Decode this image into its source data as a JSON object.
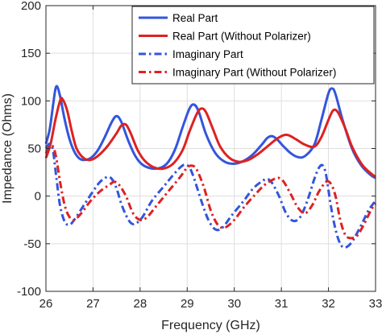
{
  "chart_data": {
    "type": "line",
    "title": "",
    "xlabel": "Frequency (GHz)",
    "ylabel": "Impedance (Ohms)",
    "xlim": [
      26,
      33
    ],
    "ylim": [
      -100,
      200
    ],
    "xticks": [
      26,
      27,
      28,
      29,
      30,
      31,
      32,
      33
    ],
    "yticks": [
      -100,
      -50,
      0,
      50,
      100,
      150,
      200
    ],
    "grid": true,
    "legend_position": "top-right",
    "series": [
      {
        "name": "Real Part",
        "color": "#3355dd",
        "style": "solid",
        "points": [
          [
            26.0,
            55
          ],
          [
            26.08,
            70
          ],
          [
            26.15,
            95
          ],
          [
            26.2,
            112
          ],
          [
            26.24,
            115
          ],
          [
            26.3,
            105
          ],
          [
            26.4,
            80
          ],
          [
            26.5,
            60
          ],
          [
            26.6,
            47
          ],
          [
            26.7,
            40
          ],
          [
            26.8,
            38
          ],
          [
            26.95,
            40
          ],
          [
            27.1,
            48
          ],
          [
            27.25,
            62
          ],
          [
            27.4,
            78
          ],
          [
            27.5,
            84
          ],
          [
            27.6,
            78
          ],
          [
            27.75,
            58
          ],
          [
            27.9,
            42
          ],
          [
            28.05,
            33
          ],
          [
            28.25,
            29
          ],
          [
            28.45,
            30
          ],
          [
            28.6,
            36
          ],
          [
            28.75,
            50
          ],
          [
            28.9,
            72
          ],
          [
            29.05,
            92
          ],
          [
            29.15,
            96
          ],
          [
            29.25,
            88
          ],
          [
            29.4,
            65
          ],
          [
            29.6,
            45
          ],
          [
            29.8,
            36
          ],
          [
            30.0,
            34
          ],
          [
            30.2,
            37
          ],
          [
            30.4,
            44
          ],
          [
            30.6,
            55
          ],
          [
            30.7,
            61
          ],
          [
            30.8,
            63
          ],
          [
            30.9,
            60
          ],
          [
            31.05,
            52
          ],
          [
            31.2,
            45
          ],
          [
            31.35,
            41
          ],
          [
            31.5,
            42
          ],
          [
            31.7,
            54
          ],
          [
            31.85,
            80
          ],
          [
            32.0,
            108
          ],
          [
            32.08,
            113
          ],
          [
            32.15,
            107
          ],
          [
            32.3,
            80
          ],
          [
            32.5,
            50
          ],
          [
            32.7,
            32
          ],
          [
            32.9,
            22
          ],
          [
            33.0,
            19
          ]
        ]
      },
      {
        "name": "Real Part (Without Polarizer)",
        "color": "#dd2222",
        "style": "solid",
        "points": [
          [
            26.0,
            40
          ],
          [
            26.1,
            55
          ],
          [
            26.2,
            80
          ],
          [
            26.3,
            100
          ],
          [
            26.35,
            102
          ],
          [
            26.45,
            90
          ],
          [
            26.55,
            68
          ],
          [
            26.65,
            50
          ],
          [
            26.8,
            40
          ],
          [
            26.95,
            38
          ],
          [
            27.1,
            42
          ],
          [
            27.3,
            52
          ],
          [
            27.5,
            66
          ],
          [
            27.6,
            74
          ],
          [
            27.7,
            75
          ],
          [
            27.8,
            66
          ],
          [
            27.95,
            48
          ],
          [
            28.1,
            37
          ],
          [
            28.3,
            30
          ],
          [
            28.5,
            29
          ],
          [
            28.7,
            34
          ],
          [
            28.9,
            48
          ],
          [
            29.05,
            68
          ],
          [
            29.2,
            86
          ],
          [
            29.3,
            92
          ],
          [
            29.4,
            88
          ],
          [
            29.55,
            70
          ],
          [
            29.7,
            52
          ],
          [
            29.9,
            40
          ],
          [
            30.1,
            36
          ],
          [
            30.3,
            38
          ],
          [
            30.5,
            44
          ],
          [
            30.7,
            52
          ],
          [
            30.9,
            60
          ],
          [
            31.05,
            64
          ],
          [
            31.15,
            64
          ],
          [
            31.3,
            60
          ],
          [
            31.5,
            54
          ],
          [
            31.7,
            52
          ],
          [
            31.85,
            62
          ],
          [
            32.0,
            80
          ],
          [
            32.1,
            90
          ],
          [
            32.2,
            88
          ],
          [
            32.35,
            72
          ],
          [
            32.5,
            52
          ],
          [
            32.7,
            34
          ],
          [
            32.85,
            26
          ],
          [
            33.0,
            20
          ]
        ]
      },
      {
        "name": "Imaginary Part",
        "color": "#3355dd",
        "style": "dashdot",
        "points": [
          [
            26.0,
            50
          ],
          [
            26.08,
            55
          ],
          [
            26.15,
            48
          ],
          [
            26.22,
            20
          ],
          [
            26.3,
            -10
          ],
          [
            26.4,
            -27
          ],
          [
            26.5,
            -30
          ],
          [
            26.6,
            -25
          ],
          [
            26.8,
            -10
          ],
          [
            27.0,
            5
          ],
          [
            27.15,
            15
          ],
          [
            27.3,
            20
          ],
          [
            27.4,
            18
          ],
          [
            27.5,
            8
          ],
          [
            27.6,
            -8
          ],
          [
            27.7,
            -20
          ],
          [
            27.8,
            -28
          ],
          [
            27.9,
            -29
          ],
          [
            28.05,
            -22
          ],
          [
            28.25,
            -5
          ],
          [
            28.5,
            10
          ],
          [
            28.7,
            22
          ],
          [
            28.85,
            30
          ],
          [
            28.95,
            33
          ],
          [
            29.05,
            30
          ],
          [
            29.15,
            18
          ],
          [
            29.3,
            -5
          ],
          [
            29.45,
            -25
          ],
          [
            29.6,
            -35
          ],
          [
            29.75,
            -33
          ],
          [
            29.95,
            -20
          ],
          [
            30.2,
            -5
          ],
          [
            30.4,
            8
          ],
          [
            30.6,
            16
          ],
          [
            30.7,
            18
          ],
          [
            30.8,
            14
          ],
          [
            30.95,
            0
          ],
          [
            31.1,
            -18
          ],
          [
            31.25,
            -26
          ],
          [
            31.4,
            -22
          ],
          [
            31.55,
            -5
          ],
          [
            31.7,
            18
          ],
          [
            31.8,
            30
          ],
          [
            31.88,
            32
          ],
          [
            31.95,
            22
          ],
          [
            32.05,
            -10
          ],
          [
            32.15,
            -35
          ],
          [
            32.25,
            -50
          ],
          [
            32.35,
            -54
          ],
          [
            32.5,
            -48
          ],
          [
            32.7,
            -30
          ],
          [
            32.85,
            -15
          ],
          [
            33.0,
            -5
          ]
        ]
      },
      {
        "name": "Imaginary Part (Without Polarizer)",
        "color": "#dd2222",
        "style": "dashdot",
        "points": [
          [
            26.0,
            45
          ],
          [
            26.08,
            52
          ],
          [
            26.15,
            52
          ],
          [
            26.22,
            40
          ],
          [
            26.3,
            15
          ],
          [
            26.4,
            -10
          ],
          [
            26.5,
            -22
          ],
          [
            26.6,
            -25
          ],
          [
            26.75,
            -18
          ],
          [
            26.95,
            -5
          ],
          [
            27.15,
            5
          ],
          [
            27.35,
            12
          ],
          [
            27.45,
            15
          ],
          [
            27.55,
            12
          ],
          [
            27.7,
            0
          ],
          [
            27.85,
            -18
          ],
          [
            28.0,
            -25
          ],
          [
            28.15,
            -22
          ],
          [
            28.35,
            -10
          ],
          [
            28.6,
            5
          ],
          [
            28.85,
            20
          ],
          [
            29.0,
            30
          ],
          [
            29.1,
            32
          ],
          [
            29.2,
            28
          ],
          [
            29.35,
            10
          ],
          [
            29.5,
            -15
          ],
          [
            29.65,
            -30
          ],
          [
            29.8,
            -33
          ],
          [
            30.0,
            -25
          ],
          [
            30.2,
            -12
          ],
          [
            30.45,
            2
          ],
          [
            30.65,
            12
          ],
          [
            30.85,
            18
          ],
          [
            30.95,
            19
          ],
          [
            31.05,
            15
          ],
          [
            31.2,
            2
          ],
          [
            31.35,
            -12
          ],
          [
            31.5,
            -18
          ],
          [
            31.65,
            -10
          ],
          [
            31.8,
            5
          ],
          [
            31.95,
            15
          ],
          [
            32.05,
            13
          ],
          [
            32.15,
            0
          ],
          [
            32.25,
            -25
          ],
          [
            32.35,
            -40
          ],
          [
            32.45,
            -44
          ],
          [
            32.6,
            -42
          ],
          [
            32.75,
            -30
          ],
          [
            32.9,
            -15
          ],
          [
            33.0,
            -8
          ]
        ]
      }
    ]
  }
}
